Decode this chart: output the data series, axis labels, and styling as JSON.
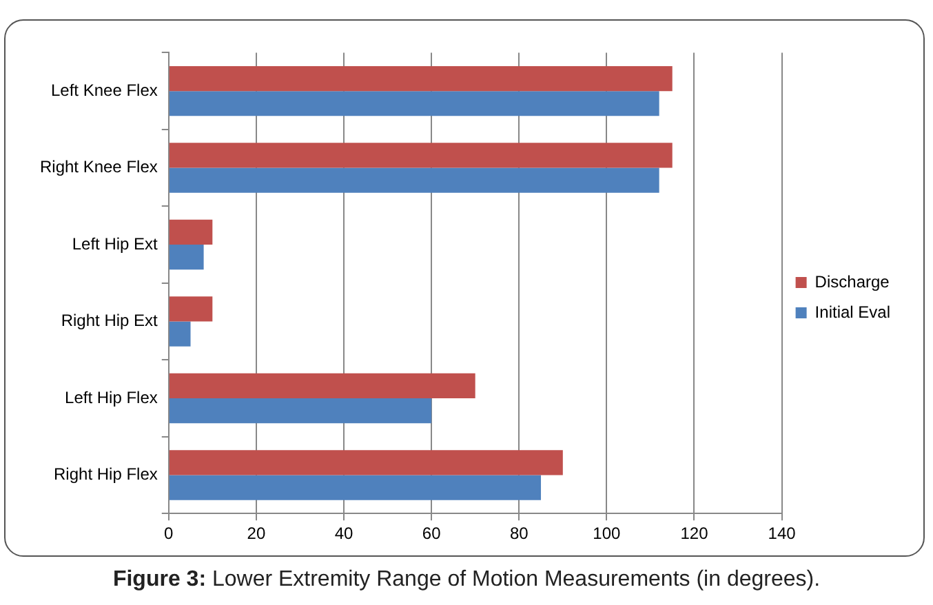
{
  "chart_data": {
    "type": "bar",
    "orientation": "horizontal",
    "categories": [
      "Left Knee Flex",
      "Right Knee Flex",
      "Left Hip Ext",
      "Right Hip Ext",
      "Left Hip Flex",
      "Right Hip Flex"
    ],
    "series": [
      {
        "name": "Discharge",
        "color": "#c0504d",
        "values": [
          115,
          115,
          10,
          10,
          70,
          90
        ]
      },
      {
        "name": "Initial Eval",
        "color": "#4f81bd",
        "values": [
          112,
          112,
          8,
          5,
          60,
          85
        ]
      }
    ],
    "xlim": [
      0,
      140
    ],
    "xticks": [
      0,
      20,
      40,
      60,
      80,
      100,
      120,
      140
    ],
    "grid": "x",
    "legend": "right",
    "annotations": [
      "Figure 3: Lower Extremity Range of Motion Measurements (in degrees)."
    ]
  }
}
